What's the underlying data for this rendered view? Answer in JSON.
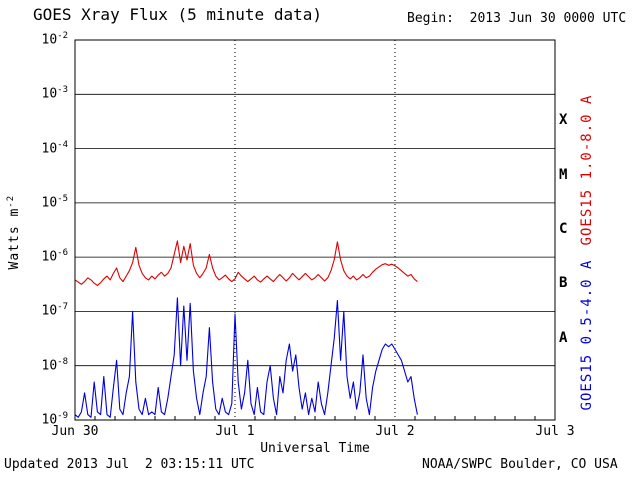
{
  "header": {
    "title": "GOES Xray Flux (5 minute data)",
    "begin": "Begin:  2013 Jun 30 0000 UTC"
  },
  "footer": {
    "updated": "Updated 2013 Jul  2 03:15:11 UTC",
    "source": "NOAA/SWPC Boulder, CO USA"
  },
  "colors": {
    "long_channel": "#dd0000",
    "short_channel": "#0000dd",
    "axis": "#000000",
    "background": "#ffffff"
  },
  "chart_data": {
    "type": "line",
    "title": "GOES Xray Flux (5 minute data)",
    "xlabel": "Universal Time",
    "ylabel": "Watts m^-2",
    "ylabel_base": "Watts m",
    "ylabel_exp": "-2",
    "x_tick_labels": [
      "Jun 30",
      "Jul 1",
      "Jul 2",
      "Jul 3"
    ],
    "x_tick_days": [
      0,
      1,
      2,
      3
    ],
    "x_range_days": [
      0,
      3
    ],
    "y_tick_exponents": [
      -2,
      -3,
      -4,
      -5,
      -6,
      -7,
      -8,
      -9
    ],
    "ylim_log": [
      -9,
      -2
    ],
    "day_boundary_lines_days": [
      1,
      2
    ],
    "grid": {
      "horizontal": "solid-decade-lines",
      "vertical": "dotted-day-boundaries",
      "legend_position": "right-rotated"
    },
    "flare_class_labels": [
      {
        "label": "X",
        "log_center": -3.5
      },
      {
        "label": "M",
        "log_center": -4.5
      },
      {
        "label": "C",
        "log_center": -5.5
      },
      {
        "label": "B",
        "log_center": -6.5
      },
      {
        "label": "A",
        "log_center": -7.5
      }
    ],
    "x_days": [
      0,
      0.02,
      0.04,
      0.06,
      0.08,
      0.1,
      0.12,
      0.14,
      0.16,
      0.18,
      0.2,
      0.22,
      0.24,
      0.26,
      0.28,
      0.3,
      0.32,
      0.34,
      0.36,
      0.38,
      0.4,
      0.42,
      0.44,
      0.46,
      0.48,
      0.5,
      0.52,
      0.54,
      0.56,
      0.58,
      0.6,
      0.62,
      0.64,
      0.66,
      0.68,
      0.7,
      0.72,
      0.74,
      0.76,
      0.78,
      0.8,
      0.82,
      0.84,
      0.86,
      0.88,
      0.9,
      0.92,
      0.94,
      0.96,
      0.98,
      1,
      1.02,
      1.04,
      1.06,
      1.08,
      1.1,
      1.12,
      1.14,
      1.16,
      1.18,
      1.2,
      1.22,
      1.24,
      1.26,
      1.28,
      1.3,
      1.32,
      1.34,
      1.36,
      1.38,
      1.4,
      1.42,
      1.44,
      1.46,
      1.48,
      1.5,
      1.52,
      1.54,
      1.56,
      1.58,
      1.6,
      1.62,
      1.64,
      1.66,
      1.68,
      1.7,
      1.72,
      1.74,
      1.76,
      1.78,
      1.8,
      1.82,
      1.84,
      1.86,
      1.88,
      1.9,
      1.92,
      1.94,
      1.96,
      1.98,
      2,
      2.02,
      2.04,
      2.06,
      2.08,
      2.1,
      2.12,
      2.14
    ],
    "series": [
      {
        "name": "GOES15 1.0-8.0 A",
        "color": "#dd0000",
        "log10_watts": [
          -6.42,
          -6.46,
          -6.5,
          -6.45,
          -6.38,
          -6.42,
          -6.48,
          -6.52,
          -6.47,
          -6.4,
          -6.35,
          -6.42,
          -6.3,
          -6.2,
          -6.38,
          -6.45,
          -6.35,
          -6.25,
          -6.1,
          -5.82,
          -6.15,
          -6.3,
          -6.38,
          -6.42,
          -6.35,
          -6.4,
          -6.33,
          -6.28,
          -6.35,
          -6.3,
          -6.2,
          -5.95,
          -5.7,
          -6.1,
          -5.8,
          -6.05,
          -5.75,
          -6.15,
          -6.3,
          -6.38,
          -6.3,
          -6.2,
          -5.95,
          -6.2,
          -6.35,
          -6.42,
          -6.38,
          -6.33,
          -6.4,
          -6.45,
          -6.4,
          -6.28,
          -6.35,
          -6.4,
          -6.45,
          -6.4,
          -6.35,
          -6.42,
          -6.46,
          -6.4,
          -6.35,
          -6.4,
          -6.45,
          -6.38,
          -6.32,
          -6.38,
          -6.44,
          -6.38,
          -6.3,
          -6.36,
          -6.42,
          -6.36,
          -6.3,
          -6.36,
          -6.42,
          -6.38,
          -6.32,
          -6.38,
          -6.44,
          -6.38,
          -6.25,
          -6.05,
          -5.72,
          -6.05,
          -6.25,
          -6.35,
          -6.4,
          -6.35,
          -6.42,
          -6.38,
          -6.32,
          -6.38,
          -6.35,
          -6.28,
          -6.22,
          -6.18,
          -6.14,
          -6.12,
          -6.15,
          -6.13,
          -6.16,
          -6.2,
          -6.25,
          -6.3,
          -6.35,
          -6.32,
          -6.4,
          -6.45
        ]
      },
      {
        "name": "GOES15 0.5-4.0 A",
        "color": "#0000dd",
        "log10_watts": [
          -8.9,
          -8.95,
          -8.85,
          -8.5,
          -8.9,
          -8.95,
          -8.3,
          -8.85,
          -8.9,
          -8.2,
          -8.9,
          -8.95,
          -8.4,
          -7.9,
          -8.8,
          -8.9,
          -8.5,
          -8.2,
          -7,
          -8.3,
          -8.8,
          -8.9,
          -8.6,
          -8.9,
          -8.85,
          -8.9,
          -8.4,
          -8.85,
          -8.9,
          -8.6,
          -8.2,
          -7.8,
          -6.75,
          -8,
          -6.9,
          -7.9,
          -6.85,
          -8.1,
          -8.6,
          -8.9,
          -8.5,
          -8.2,
          -7.3,
          -8.3,
          -8.8,
          -8.9,
          -8.6,
          -8.85,
          -8.9,
          -8.7,
          -7.05,
          -8.3,
          -8.8,
          -8.5,
          -7.9,
          -8.7,
          -8.9,
          -8.4,
          -8.85,
          -8.9,
          -8.3,
          -8,
          -8.6,
          -8.9,
          -8.2,
          -8.5,
          -7.9,
          -7.6,
          -8.1,
          -7.8,
          -8.4,
          -8.8,
          -8.5,
          -8.9,
          -8.6,
          -8.85,
          -8.3,
          -8.7,
          -8.9,
          -8.5,
          -8,
          -7.5,
          -6.8,
          -7.9,
          -7,
          -8.2,
          -8.6,
          -8.3,
          -8.8,
          -8.5,
          -7.8,
          -8.6,
          -8.9,
          -8.4,
          -8.1,
          -7.9,
          -7.7,
          -7.6,
          -7.65,
          -7.6,
          -7.7,
          -7.8,
          -7.9,
          -8.1,
          -8.3,
          -8.2,
          -8.6,
          -8.9
        ]
      }
    ]
  }
}
